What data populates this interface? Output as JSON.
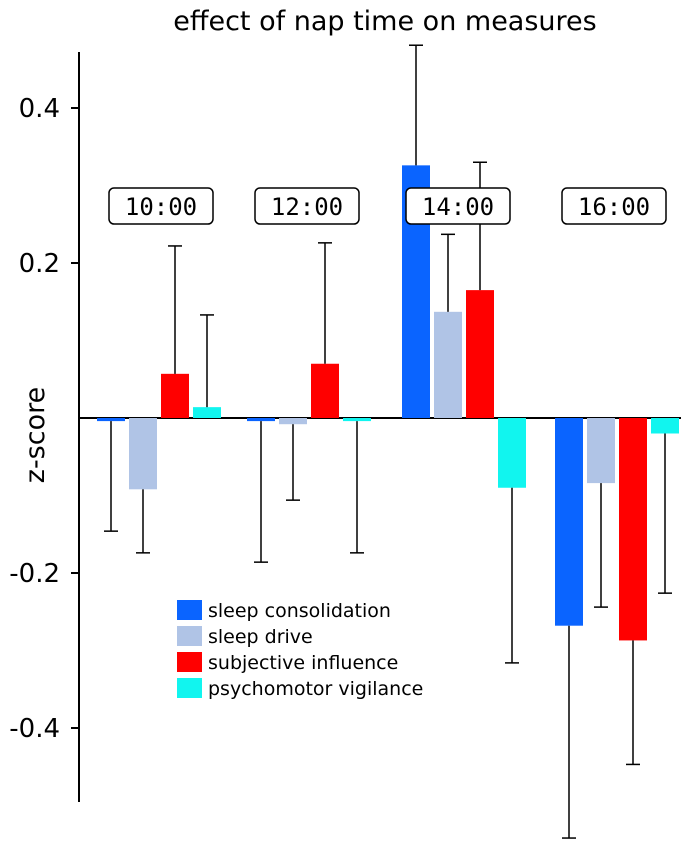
{
  "chart_data": {
    "type": "bar",
    "title": "effect of nap time on measures",
    "xlabel": "",
    "ylabel": "z-score",
    "ylim": [
      -0.5,
      0.48
    ],
    "yticks": [
      0.4,
      0.2,
      -0.2,
      -0.4
    ],
    "ytick_labels": [
      "0.4",
      "0.2",
      "-0.2",
      "-0.4"
    ],
    "categories": [
      "10:00",
      "12:00",
      "14:00",
      "16:00"
    ],
    "series": [
      {
        "name": "sleep consolidation",
        "color": "#0a64ff",
        "values": [
          -0.004,
          -0.004,
          0.326,
          -0.268
        ],
        "error": [
          0.142,
          0.182,
          0.155,
          0.274
        ]
      },
      {
        "name": "sleep drive",
        "color": "#b0c4e6",
        "values": [
          -0.092,
          -0.008,
          0.137,
          -0.084
        ],
        "error": [
          0.082,
          0.098,
          0.1,
          0.16
        ]
      },
      {
        "name": "subjective influence",
        "color": "#ff0000",
        "values": [
          0.057,
          0.07,
          0.165,
          -0.287
        ],
        "error": [
          0.165,
          0.156,
          0.165,
          0.16
        ]
      },
      {
        "name": "psychomotor vigilance",
        "color": "#11f5ef",
        "values": [
          0.014,
          -0.004,
          -0.09,
          -0.02
        ],
        "error": [
          0.119,
          0.17,
          0.226,
          0.206
        ]
      }
    ]
  }
}
